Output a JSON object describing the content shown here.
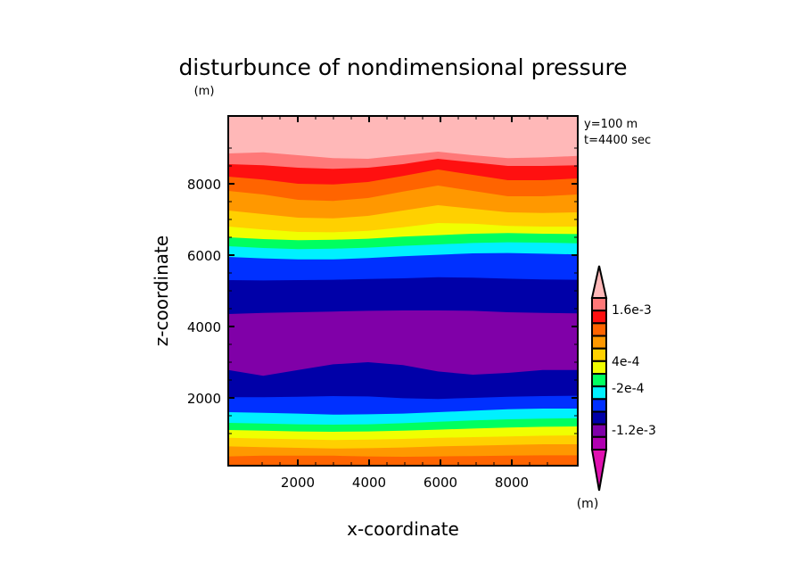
{
  "chart_data": {
    "type": "contour",
    "title": "disturbunce of nondimensional pressure",
    "title_unit": "(m)",
    "annotations": [
      "y=100 m",
      "t=4400 sec"
    ],
    "xlabel": "x-coordinate",
    "ylabel": "z-coordinate",
    "xlim": [
      50,
      9850
    ],
    "ylim": [
      100,
      9900
    ],
    "xticks": [
      2000,
      4000,
      6000,
      8000
    ],
    "yticks": [
      2000,
      4000,
      6000,
      8000
    ],
    "xtick_labels": [
      "2000",
      "4000",
      "6000",
      "8000"
    ],
    "ytick_labels": [
      "2000",
      "4000",
      "6000",
      "8000"
    ],
    "colorbar": {
      "unit": "(m)",
      "levels": [
        -0.002,
        -0.0016,
        -0.0012,
        -0.0008,
        -0.0004,
        -0.0002,
        0,
        0.0002,
        0.0004,
        0.0008,
        0.0012,
        0.0016,
        0.002
      ],
      "labels": [
        "1.6e-3",
        "4e-4",
        "-2e-4",
        "-1.2e-3"
      ],
      "colors": [
        "#e010b0",
        "#b000b0",
        "#8000a8",
        "#0000a8",
        "#0030ff",
        "#00f0ff",
        "#00ff60",
        "#f0ff00",
        "#ffd000",
        "#ff9800",
        "#ff6400",
        "#ff1010",
        "#ff7878",
        "#ffb8b8"
      ]
    },
    "bands": [
      {
        "color": "#ff6400",
        "bottom_z": [
          100,
          100,
          100,
          100,
          100,
          100,
          100,
          100,
          100,
          100,
          100
        ]
      },
      {
        "color": "#ff9800",
        "bottom_z": [
          360,
          380,
          380,
          380,
          360,
          350,
          360,
          370,
          380,
          390,
          390
        ]
      },
      {
        "color": "#ffd000",
        "bottom_z": [
          640,
          620,
          600,
          580,
          590,
          610,
          640,
          660,
          680,
          700,
          700
        ]
      },
      {
        "color": "#f0ff00",
        "bottom_z": [
          880,
          860,
          840,
          820,
          830,
          850,
          880,
          900,
          920,
          940,
          950
        ]
      },
      {
        "color": "#00ff60",
        "bottom_z": [
          1100,
          1080,
          1060,
          1050,
          1060,
          1080,
          1110,
          1140,
          1170,
          1190,
          1200
        ]
      },
      {
        "color": "#00f0ff",
        "bottom_z": [
          1300,
          1280,
          1260,
          1250,
          1260,
          1290,
          1330,
          1370,
          1400,
          1420,
          1430
        ]
      },
      {
        "color": "#0030ff",
        "bottom_z": [
          1600,
          1580,
          1560,
          1530,
          1540,
          1560,
          1600,
          1640,
          1680,
          1700,
          1700
        ]
      },
      {
        "color": "#0000a8",
        "bottom_z": [
          2020,
          2020,
          2030,
          2050,
          2040,
          1990,
          1970,
          2000,
          2030,
          2050,
          2060
        ]
      },
      {
        "color": "#8000a8",
        "bottom_z": [
          2780,
          2620,
          2780,
          2940,
          3000,
          2920,
          2740,
          2650,
          2700,
          2780,
          2780
        ]
      },
      {
        "color": "#0000a8",
        "bottom_z": [
          4350,
          4380,
          4400,
          4420,
          4440,
          4450,
          4450,
          4440,
          4400,
          4380,
          4370
        ]
      },
      {
        "color": "#0030ff",
        "bottom_z": [
          5300,
          5290,
          5300,
          5310,
          5330,
          5350,
          5380,
          5370,
          5340,
          5320,
          5310
        ]
      },
      {
        "color": "#00f0ff",
        "bottom_z": [
          5950,
          5910,
          5880,
          5880,
          5920,
          5970,
          6010,
          6050,
          6060,
          6040,
          6020
        ]
      },
      {
        "color": "#00ff60",
        "bottom_z": [
          6250,
          6200,
          6170,
          6180,
          6210,
          6260,
          6300,
          6340,
          6360,
          6350,
          6330
        ]
      },
      {
        "color": "#f0ff00",
        "bottom_z": [
          6500,
          6450,
          6420,
          6430,
          6460,
          6520,
          6560,
          6600,
          6620,
          6600,
          6590
        ]
      },
      {
        "color": "#ffd000",
        "bottom_z": [
          6800,
          6720,
          6650,
          6640,
          6680,
          6780,
          6900,
          6880,
          6820,
          6800,
          6800
        ]
      },
      {
        "color": "#ff9800",
        "bottom_z": [
          7250,
          7150,
          7050,
          7030,
          7100,
          7250,
          7400,
          7300,
          7200,
          7180,
          7200
        ]
      },
      {
        "color": "#ff6400",
        "bottom_z": [
          7800,
          7700,
          7550,
          7520,
          7600,
          7780,
          7950,
          7800,
          7650,
          7650,
          7700
        ]
      },
      {
        "color": "#ff1010",
        "bottom_z": [
          8200,
          8120,
          8000,
          7980,
          8050,
          8220,
          8400,
          8250,
          8100,
          8100,
          8150
        ]
      },
      {
        "color": "#ff7878",
        "bottom_z": [
          8550,
          8520,
          8450,
          8420,
          8450,
          8550,
          8700,
          8600,
          8500,
          8500,
          8520
        ]
      },
      {
        "color": "#ffb8b8",
        "bottom_z": [
          8850,
          8880,
          8800,
          8720,
          8700,
          8800,
          8900,
          8800,
          8720,
          8740,
          8780
        ]
      }
    ],
    "band_x": [
      50,
      1030,
      2010,
      2990,
      3970,
      4950,
      5930,
      6910,
      7890,
      8870,
      9850
    ]
  }
}
